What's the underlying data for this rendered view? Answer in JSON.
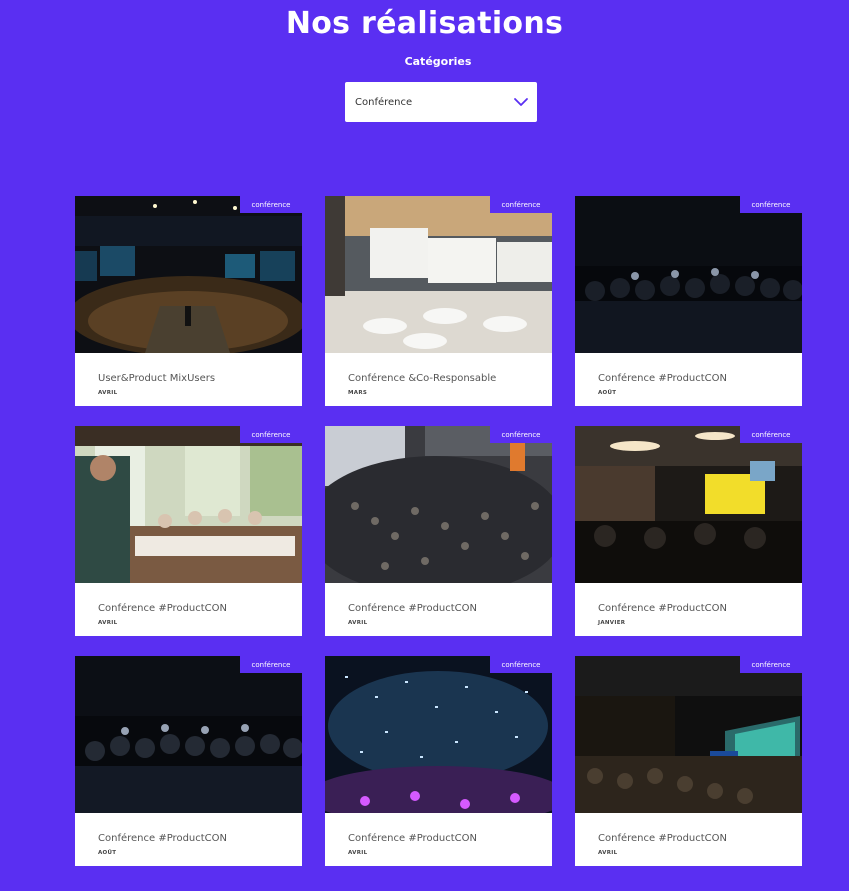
{
  "header": {
    "title": "Nos réalisations"
  },
  "filter": {
    "label": "Catégories",
    "selected": "Conférence"
  },
  "colors": {
    "background": "#5a2ff2",
    "card": "#ffffff",
    "badge": "#5a2ff2"
  },
  "cards": [
    {
      "badge": "conférence",
      "title": "User&Product MixUsers",
      "month": "AVRIL",
      "scene": "stage-hall"
    },
    {
      "badge": "conférence",
      "title": "Conférence &Co-Responsable",
      "month": "MARS",
      "scene": "banquet-room"
    },
    {
      "badge": "conférence",
      "title": "Conférence #ProductCON",
      "month": "AOÛT",
      "scene": "dark-audience"
    },
    {
      "badge": "conférence",
      "title": "Conférence #ProductCON",
      "month": "AVRIL",
      "scene": "restaurant-talk"
    },
    {
      "badge": "conférence",
      "title": "Conférence #ProductCON",
      "month": "AVRIL",
      "scene": "crowd-top"
    },
    {
      "badge": "conférence",
      "title": "Conférence #ProductCON",
      "month": "JANVIER",
      "scene": "bar-screen"
    },
    {
      "badge": "conférence",
      "title": "Conférence #ProductCON",
      "month": "AOÛT",
      "scene": "dark-audience-2"
    },
    {
      "badge": "conférence",
      "title": "Conférence #ProductCON",
      "month": "AVRIL",
      "scene": "confetti"
    },
    {
      "badge": "conférence",
      "title": "Conférence #ProductCON",
      "month": "AVRIL",
      "scene": "auditorium-stage"
    }
  ]
}
